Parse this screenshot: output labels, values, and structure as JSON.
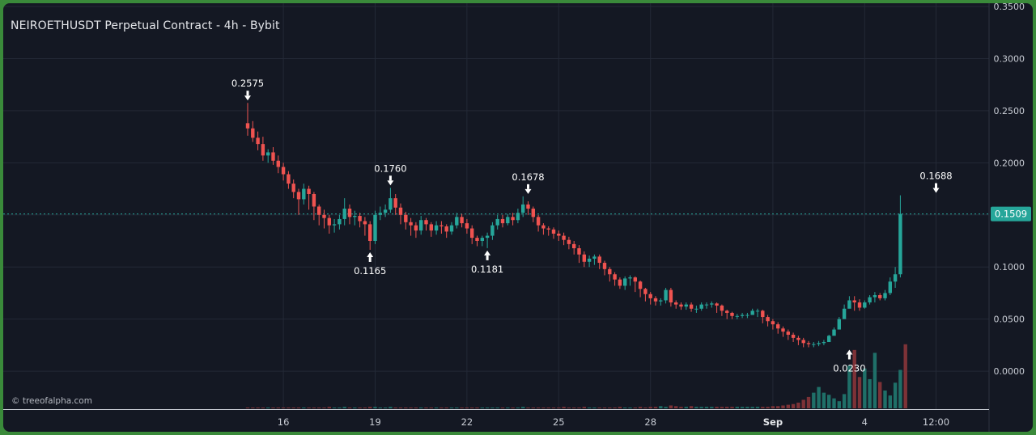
{
  "header": {
    "title": "NEIROETHUSDT Perpetual Contract - 4h - Bybit"
  },
  "watermark": "© treeofalpha.com",
  "colors": {
    "background": "#141823",
    "up": "#26a69a",
    "down": "#ef5350",
    "grid": "#232936",
    "price_line": "#26a69a",
    "axis_text": "#c8ccd4"
  },
  "chart_data": {
    "type": "candlestick",
    "title": "NEIROETHUSDT Perpetual Contract - 4h - Bybit",
    "interval": "4h",
    "exchange": "Bybit",
    "ylim": [
      -0.0325,
      0.35
    ],
    "y_ticks": [
      "0.3500",
      "0.3000",
      "0.2500",
      "0.2000",
      "0.1500",
      "0.1000",
      "0.0500",
      "0.0000"
    ],
    "y_tick_values": [
      0.35,
      0.3,
      0.25,
      0.2,
      0.15,
      0.1,
      0.05,
      0.0
    ],
    "x_ticks": [
      "16",
      "19",
      "22",
      "25",
      "28",
      "Sep",
      "4",
      "12:00"
    ],
    "x_tick_bars": [
      7,
      25,
      43,
      61,
      79,
      103,
      121,
      135
    ],
    "grid": true,
    "current_price": 0.1509,
    "current_price_label": "0.1509",
    "annotations": [
      {
        "label": "0.2575",
        "bar": 0,
        "value": 0.2575,
        "type": "high"
      },
      {
        "label": "0.1165",
        "bar": 24,
        "value": 0.1165,
        "type": "low"
      },
      {
        "label": "0.1760",
        "bar": 28,
        "value": 0.176,
        "type": "high"
      },
      {
        "label": "0.1181",
        "bar": 47,
        "value": 0.1181,
        "type": "low"
      },
      {
        "label": "0.1678",
        "bar": 55,
        "value": 0.1678,
        "type": "high"
      },
      {
        "label": "0.0230",
        "bar": 118,
        "value": 0.023,
        "type": "low"
      },
      {
        "label": "0.1688",
        "bar": 135,
        "value": 0.1688,
        "type": "high"
      }
    ],
    "opens": [
      0.238,
      0.233,
      0.224,
      0.218,
      0.207,
      0.21,
      0.202,
      0.196,
      0.189,
      0.18,
      0.172,
      0.165,
      0.175,
      0.17,
      0.158,
      0.15,
      0.147,
      0.14,
      0.141,
      0.146,
      0.156,
      0.148,
      0.149,
      0.144,
      0.141,
      0.125,
      0.15,
      0.152,
      0.155,
      0.166,
      0.157,
      0.15,
      0.143,
      0.14,
      0.135,
      0.145,
      0.141,
      0.135,
      0.14,
      0.139,
      0.134,
      0.14,
      0.148,
      0.142,
      0.137,
      0.128,
      0.125,
      0.128,
      0.13,
      0.14,
      0.146,
      0.142,
      0.148,
      0.145,
      0.152,
      0.16,
      0.156,
      0.148,
      0.14,
      0.137,
      0.136,
      0.132,
      0.13,
      0.126,
      0.122,
      0.118,
      0.112,
      0.105,
      0.108,
      0.11,
      0.104,
      0.098,
      0.093,
      0.088,
      0.082,
      0.089,
      0.09,
      0.086,
      0.079,
      0.074,
      0.07,
      0.067,
      0.068,
      0.078,
      0.066,
      0.064,
      0.062,
      0.064,
      0.06,
      0.06,
      0.064,
      0.064,
      0.065,
      0.063,
      0.058,
      0.056,
      0.053,
      0.053,
      0.054,
      0.054,
      0.058,
      0.058,
      0.052,
      0.048,
      0.045,
      0.041,
      0.038,
      0.035,
      0.032,
      0.03,
      0.027,
      0.026,
      0.026,
      0.027,
      0.028,
      0.034,
      0.04,
      0.05,
      0.06,
      0.068,
      0.066,
      0.061,
      0.066,
      0.071,
      0.073,
      0.07,
      0.075,
      0.086,
      0.093
    ],
    "closes": [
      0.233,
      0.224,
      0.218,
      0.207,
      0.21,
      0.202,
      0.196,
      0.189,
      0.18,
      0.172,
      0.165,
      0.175,
      0.17,
      0.158,
      0.15,
      0.147,
      0.14,
      0.141,
      0.146,
      0.156,
      0.148,
      0.149,
      0.144,
      0.141,
      0.125,
      0.15,
      0.152,
      0.155,
      0.166,
      0.157,
      0.15,
      0.143,
      0.14,
      0.135,
      0.145,
      0.141,
      0.135,
      0.14,
      0.139,
      0.134,
      0.14,
      0.148,
      0.142,
      0.137,
      0.128,
      0.125,
      0.128,
      0.13,
      0.14,
      0.146,
      0.142,
      0.148,
      0.145,
      0.152,
      0.16,
      0.156,
      0.148,
      0.14,
      0.137,
      0.136,
      0.132,
      0.13,
      0.126,
      0.122,
      0.118,
      0.112,
      0.105,
      0.108,
      0.11,
      0.104,
      0.098,
      0.093,
      0.088,
      0.082,
      0.089,
      0.09,
      0.086,
      0.079,
      0.074,
      0.07,
      0.067,
      0.068,
      0.078,
      0.066,
      0.064,
      0.062,
      0.064,
      0.06,
      0.06,
      0.064,
      0.064,
      0.065,
      0.063,
      0.058,
      0.056,
      0.053,
      0.053,
      0.054,
      0.054,
      0.058,
      0.058,
      0.052,
      0.048,
      0.045,
      0.041,
      0.038,
      0.035,
      0.032,
      0.03,
      0.027,
      0.026,
      0.026,
      0.027,
      0.028,
      0.034,
      0.04,
      0.05,
      0.06,
      0.068,
      0.066,
      0.061,
      0.066,
      0.071,
      0.073,
      0.07,
      0.075,
      0.086,
      0.093,
      0.1509
    ],
    "highs": [
      0.2575,
      0.24,
      0.23,
      0.225,
      0.213,
      0.215,
      0.207,
      0.2,
      0.192,
      0.184,
      0.175,
      0.18,
      0.178,
      0.172,
      0.16,
      0.155,
      0.15,
      0.146,
      0.15,
      0.166,
      0.16,
      0.154,
      0.152,
      0.148,
      0.144,
      0.154,
      0.158,
      0.16,
      0.176,
      0.17,
      0.161,
      0.153,
      0.147,
      0.143,
      0.149,
      0.147,
      0.143,
      0.144,
      0.144,
      0.141,
      0.143,
      0.152,
      0.151,
      0.146,
      0.14,
      0.13,
      0.13,
      0.133,
      0.143,
      0.15,
      0.15,
      0.151,
      0.152,
      0.156,
      0.1678,
      0.163,
      0.158,
      0.15,
      0.142,
      0.139,
      0.138,
      0.135,
      0.133,
      0.129,
      0.125,
      0.121,
      0.115,
      0.111,
      0.112,
      0.112,
      0.106,
      0.1,
      0.095,
      0.09,
      0.091,
      0.092,
      0.091,
      0.087,
      0.08,
      0.076,
      0.072,
      0.07,
      0.08,
      0.08,
      0.068,
      0.066,
      0.066,
      0.066,
      0.063,
      0.066,
      0.066,
      0.067,
      0.066,
      0.064,
      0.059,
      0.057,
      0.055,
      0.056,
      0.056,
      0.06,
      0.06,
      0.059,
      0.054,
      0.05,
      0.047,
      0.043,
      0.04,
      0.037,
      0.034,
      0.032,
      0.029,
      0.028,
      0.029,
      0.03,
      0.035,
      0.042,
      0.052,
      0.064,
      0.072,
      0.072,
      0.069,
      0.068,
      0.073,
      0.076,
      0.075,
      0.078,
      0.09,
      0.1,
      0.1688
    ],
    "lows": [
      0.226,
      0.22,
      0.212,
      0.202,
      0.2,
      0.198,
      0.19,
      0.183,
      0.175,
      0.166,
      0.15,
      0.16,
      0.155,
      0.145,
      0.14,
      0.137,
      0.132,
      0.133,
      0.136,
      0.14,
      0.141,
      0.14,
      0.138,
      0.13,
      0.1165,
      0.122,
      0.145,
      0.148,
      0.152,
      0.15,
      0.141,
      0.136,
      0.13,
      0.128,
      0.131,
      0.135,
      0.129,
      0.131,
      0.132,
      0.128,
      0.131,
      0.137,
      0.138,
      0.132,
      0.122,
      0.12,
      0.12,
      0.1181,
      0.126,
      0.136,
      0.138,
      0.14,
      0.14,
      0.142,
      0.148,
      0.15,
      0.143,
      0.134,
      0.131,
      0.13,
      0.127,
      0.125,
      0.121,
      0.117,
      0.112,
      0.104,
      0.1,
      0.1,
      0.102,
      0.098,
      0.092,
      0.086,
      0.082,
      0.079,
      0.078,
      0.082,
      0.076,
      0.071,
      0.067,
      0.064,
      0.063,
      0.063,
      0.065,
      0.062,
      0.06,
      0.059,
      0.059,
      0.057,
      0.056,
      0.058,
      0.06,
      0.061,
      0.056,
      0.053,
      0.05,
      0.05,
      0.05,
      0.051,
      0.051,
      0.054,
      0.052,
      0.046,
      0.043,
      0.04,
      0.036,
      0.033,
      0.03,
      0.028,
      0.025,
      0.023,
      0.023,
      0.023,
      0.024,
      0.025,
      0.03,
      0.036,
      0.045,
      0.052,
      0.062,
      0.058,
      0.058,
      0.06,
      0.064,
      0.066,
      0.068,
      0.068,
      0.073,
      0.08,
      0.09
    ],
    "volume_ratio": [
      0.01,
      0.01,
      0.01,
      0.01,
      0.01,
      0.01,
      0.01,
      0.01,
      0.01,
      0.01,
      0.01,
      0.01,
      0.01,
      0.01,
      0.01,
      0.01,
      0.02,
      0.01,
      0.01,
      0.02,
      0.01,
      0.01,
      0.01,
      0.01,
      0.02,
      0.02,
      0.01,
      0.01,
      0.02,
      0.01,
      0.01,
      0.01,
      0.01,
      0.01,
      0.01,
      0.01,
      0.01,
      0.01,
      0.01,
      0.01,
      0.01,
      0.01,
      0.01,
      0.01,
      0.01,
      0.01,
      0.01,
      0.01,
      0.01,
      0.01,
      0.01,
      0.01,
      0.01,
      0.01,
      0.02,
      0.01,
      0.01,
      0.01,
      0.01,
      0.01,
      0.01,
      0.01,
      0.02,
      0.01,
      0.01,
      0.01,
      0.02,
      0.01,
      0.01,
      0.01,
      0.01,
      0.01,
      0.01,
      0.02,
      0.01,
      0.01,
      0.01,
      0.02,
      0.01,
      0.02,
      0.02,
      0.03,
      0.02,
      0.04,
      0.03,
      0.02,
      0.02,
      0.03,
      0.02,
      0.02,
      0.02,
      0.02,
      0.02,
      0.02,
      0.02,
      0.02,
      0.02,
      0.02,
      0.02,
      0.02,
      0.02,
      0.02,
      0.02,
      0.03,
      0.03,
      0.04,
      0.05,
      0.06,
      0.08,
      0.12,
      0.16,
      0.22,
      0.3,
      0.22,
      0.19,
      0.14,
      0.1,
      0.2,
      0.6,
      0.82,
      0.44,
      0.56,
      0.41,
      0.78,
      0.37,
      0.25,
      0.18,
      0.36,
      0.54,
      0.9
    ]
  }
}
